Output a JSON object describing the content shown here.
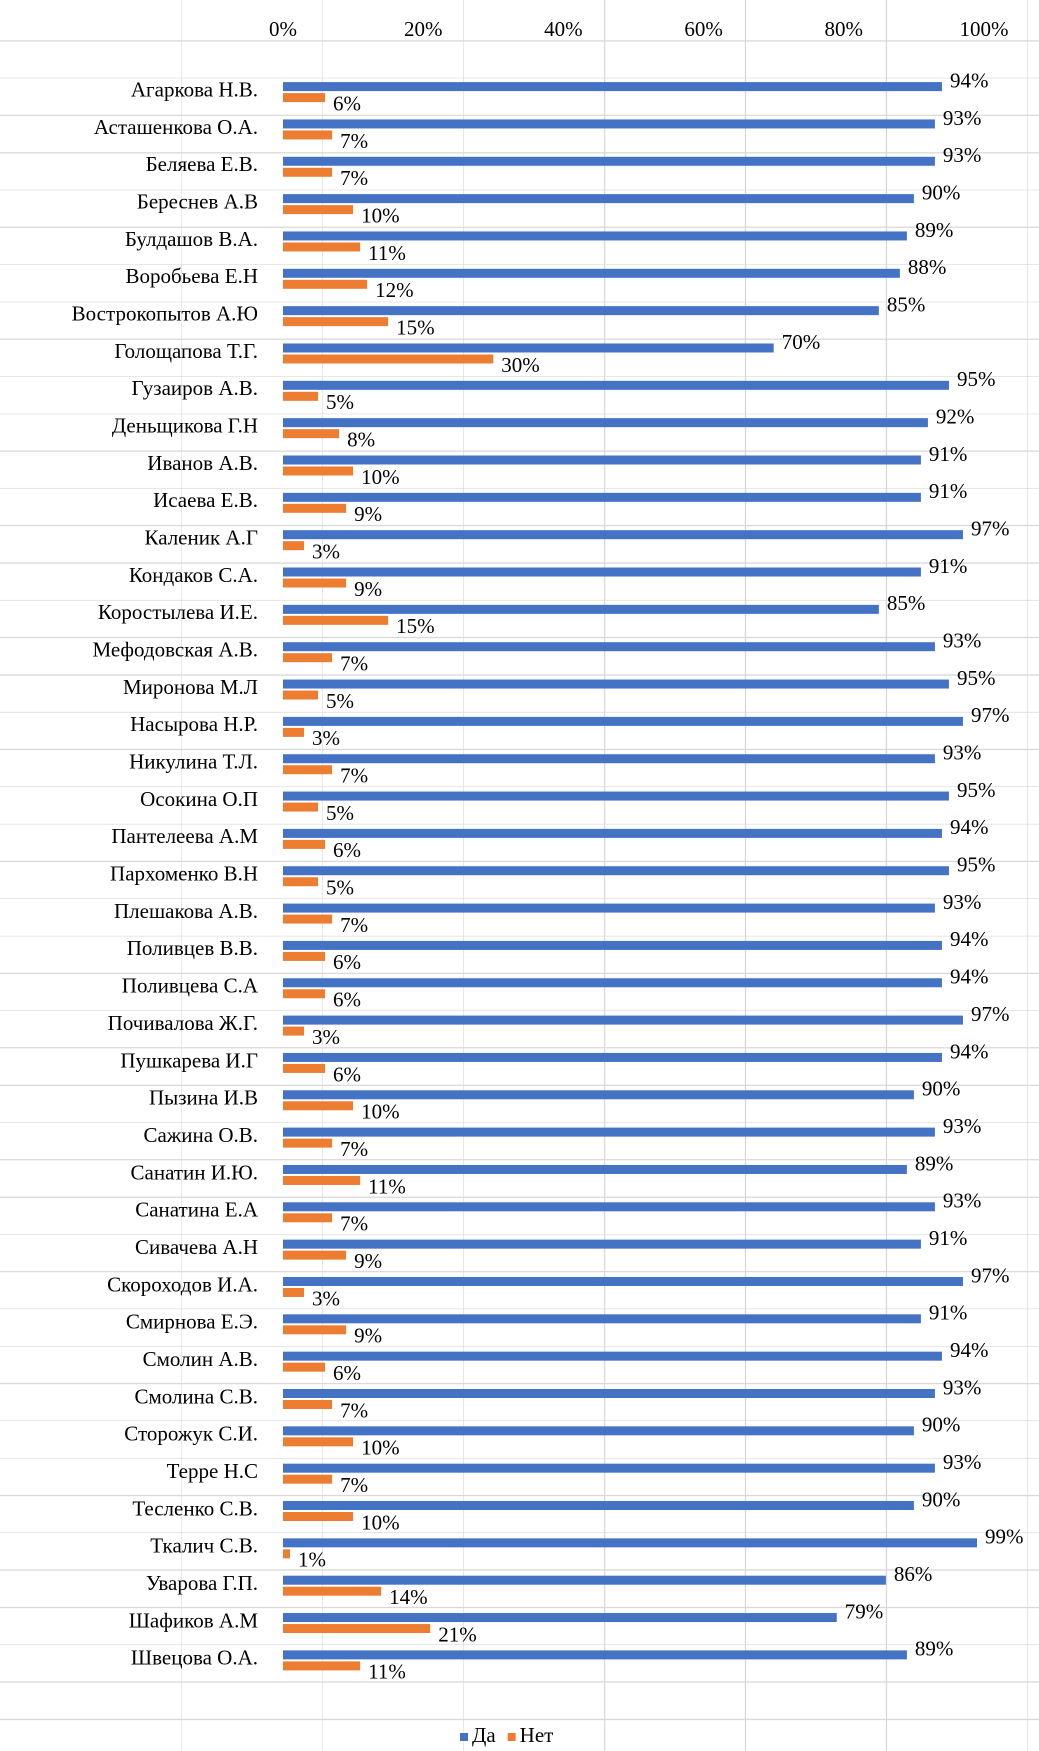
{
  "chart_data": {
    "type": "bar",
    "orientation": "horizontal",
    "categories": [
      "Агаркова Н.В.",
      "Асташенкова О.А.",
      "Беляева Е.В.",
      "Береснев А.В",
      "Булдашов В.А.",
      "Воробьева Е.Н",
      "Вострокопытов А.Ю",
      "Голощапова Т.Г.",
      "Гузаиров А.В.",
      "Деньщикова Г.Н",
      "Иванов А.В.",
      "Исаева Е.В.",
      "Каленик А.Г",
      "Кондаков С.А.",
      "Коростылева И.Е.",
      "Мефодовская А.В.",
      "Миронова М.Л",
      "Насырова Н.Р.",
      "Никулина Т.Л.",
      "Осокина О.П",
      "Пантелеева А.М",
      "Пархоменко В.Н",
      "Плешакова А.В.",
      "Поливцев В.В.",
      "Поливцева С.А",
      "Почивалова Ж.Г.",
      "Пушкарева И.Г",
      "Пызина И.В",
      "Сажина О.В.",
      "Санатин И.Ю.",
      "Санатина Е.А",
      "Сивачева А.Н",
      "Скороходов И.А.",
      "Смирнова Е.Э.",
      "Смолин А.В.",
      "Смолина С.В.",
      "Сторожук С.И.",
      "Терре Н.С",
      "Тесленко С.В.",
      "Ткалич С.В.",
      "Уварова Г.П.",
      "Шафиков А.М",
      "Швецова О.А."
    ],
    "series": [
      {
        "name": "Да",
        "color": "#4472c4",
        "values": [
          94,
          93,
          93,
          90,
          89,
          88,
          85,
          70,
          95,
          92,
          91,
          91,
          97,
          91,
          85,
          93,
          95,
          97,
          93,
          95,
          94,
          95,
          93,
          94,
          94,
          97,
          94,
          90,
          93,
          89,
          93,
          91,
          97,
          91,
          94,
          93,
          90,
          93,
          90,
          99,
          86,
          79,
          89
        ],
        "value_labels": [
          "94%",
          "93%",
          "93%",
          "90%",
          "89%",
          "88%",
          "85%",
          "70%",
          "95%",
          "92%",
          "91%",
          "91%",
          "97%",
          "91%",
          "85%",
          "93%",
          "95%",
          "97%",
          "93%",
          "95%",
          "94%",
          "95%",
          "93%",
          "94%",
          "94%",
          "97%",
          "94%",
          "90%",
          "93%",
          "89%",
          "93%",
          "91%",
          "97%",
          "91%",
          "94%",
          "93%",
          "90%",
          "93%",
          "90%",
          "99%",
          "86%",
          "79%",
          "89%"
        ]
      },
      {
        "name": "Нет",
        "color": "#ed7d31",
        "values": [
          6,
          7,
          7,
          10,
          11,
          12,
          15,
          30,
          5,
          8,
          10,
          9,
          3,
          9,
          15,
          7,
          5,
          3,
          7,
          5,
          6,
          5,
          7,
          6,
          6,
          3,
          6,
          10,
          7,
          11,
          7,
          9,
          3,
          9,
          6,
          7,
          10,
          7,
          10,
          1,
          14,
          21,
          11
        ],
        "value_labels": [
          "6%",
          "7%",
          "7%",
          "10%",
          "11%",
          "12%",
          "15%",
          "30%",
          "5%",
          "8%",
          "10%",
          "9%",
          "3%",
          "9%",
          "15%",
          "7%",
          "5%",
          "3%",
          "7%",
          "5%",
          "6%",
          "5%",
          "7%",
          "6%",
          "6%",
          "3%",
          "6%",
          "10%",
          "7%",
          "11%",
          "7%",
          "9%",
          "3%",
          "9%",
          "6%",
          "7%",
          "10%",
          "7%",
          "10%",
          "1%",
          "14%",
          "21%",
          "11%"
        ]
      }
    ],
    "xlim": [
      0,
      100
    ],
    "xticks": [
      {
        "value": 0,
        "label": "0%"
      },
      {
        "value": 20,
        "label": "20%"
      },
      {
        "value": 40,
        "label": "40%"
      },
      {
        "value": 60,
        "label": "60%"
      },
      {
        "value": 80,
        "label": "80%"
      },
      {
        "value": 100,
        "label": "100%"
      }
    ],
    "grid": false,
    "legend": "bottom"
  }
}
